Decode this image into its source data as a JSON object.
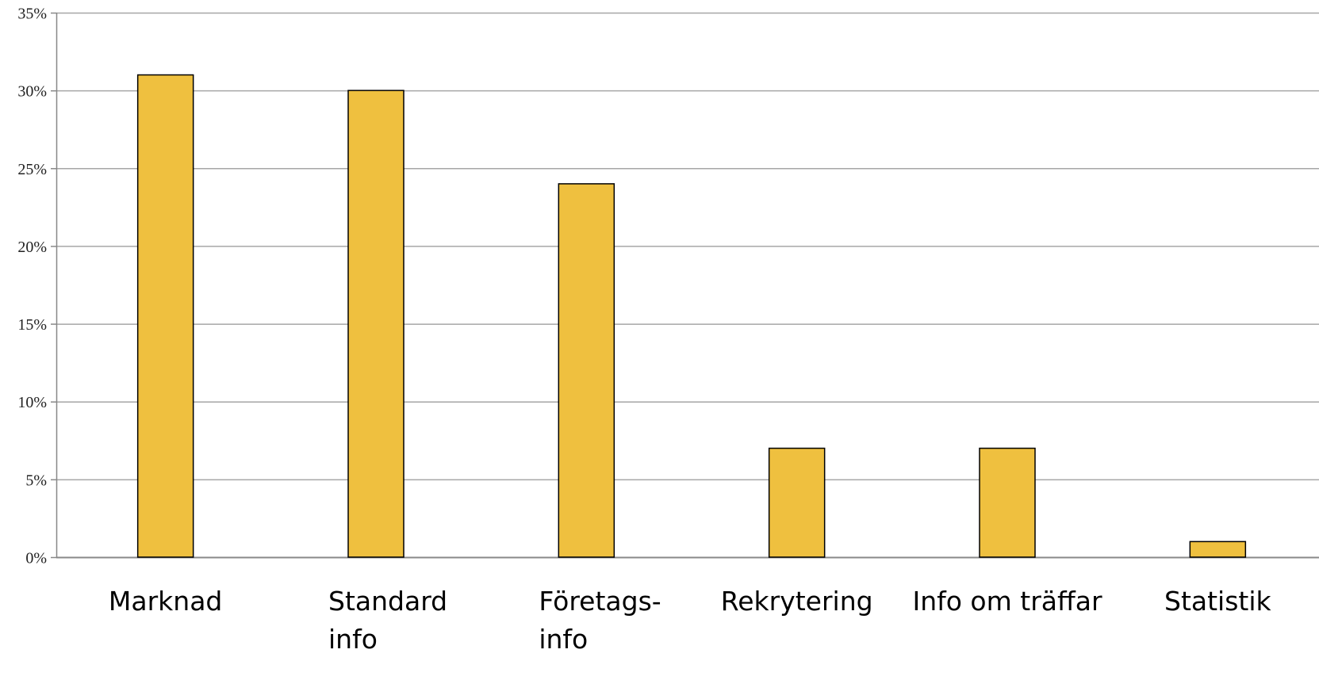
{
  "chart_data": {
    "type": "bar",
    "title": "",
    "xlabel": "",
    "ylabel": "",
    "categories": [
      [
        "Marknad"
      ],
      [
        "Standard",
        "info"
      ],
      [
        "Företags-",
        "info"
      ],
      [
        "Rekrytering"
      ],
      [
        "Info om träffar"
      ],
      [
        "Statistik"
      ]
    ],
    "values": [
      31,
      30,
      24,
      7,
      7,
      1
    ],
    "value_unit": "%",
    "ylim": [
      0,
      35
    ],
    "yticks": [
      "0%",
      "5%",
      "10%",
      "15%",
      "20%",
      "25%",
      "30%",
      "35%"
    ],
    "ytick_values": [
      0,
      5,
      10,
      15,
      20,
      25,
      30,
      35
    ],
    "grid": true,
    "legend": "none",
    "colors": {
      "bar_fill": "#EFC03F",
      "bar_stroke": "#000000",
      "grid": "#A6A6A6",
      "axis": "#888888"
    }
  }
}
